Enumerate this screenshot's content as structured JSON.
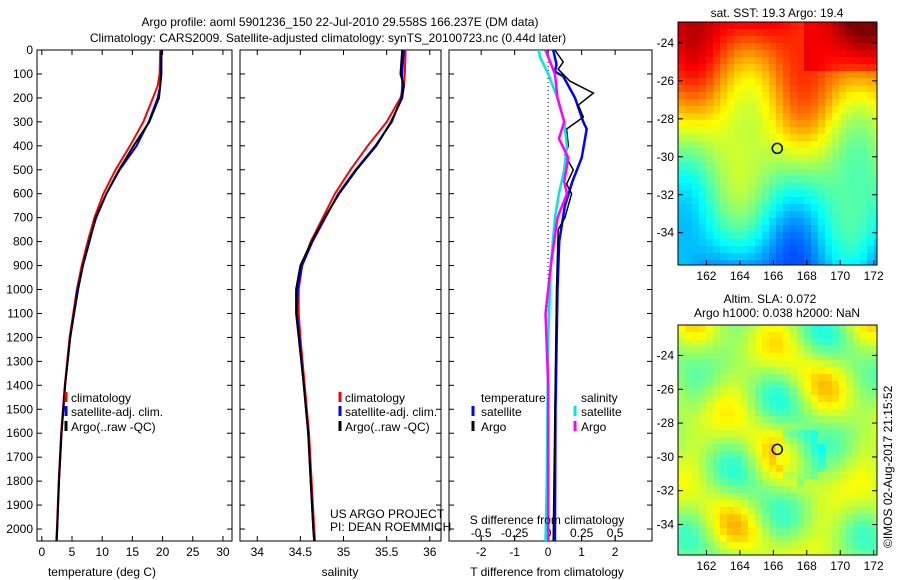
{
  "title_line1": "Argo profile: aoml 5901236_150 22-Jul-2010 29.558S 166.237E (DM data)",
  "title_line2": "Climatology: CARS2009. Satellite-adjusted climatology: synTS_20100723.nc (0.44d later)",
  "footer_credit": "©IMOS 02-Aug-2017 21:15:52",
  "project_line1": "US ARGO PROJECT",
  "project_line2": "PI: DEAN ROEMMICH",
  "colors": {
    "climatology": "#ff0000",
    "satellite": "#0000ff",
    "argo": "#000000",
    "sal_satellite": "#00e5e5",
    "sal_argo": "#ff00ff"
  },
  "chart_data": [
    {
      "type": "line",
      "name": "temperature-profile",
      "xlabel": "temperature (deg C)",
      "ylabel": "",
      "xlim": [
        -0.8,
        31.5
      ],
      "ylim": [
        2050,
        0
      ],
      "xticks": [
        0,
        5,
        10,
        15,
        20,
        25,
        30
      ],
      "yticks": [
        0,
        100,
        200,
        300,
        400,
        500,
        600,
        700,
        800,
        900,
        1000,
        1100,
        1200,
        1300,
        1400,
        1500,
        1600,
        1700,
        1800,
        1900,
        2000
      ],
      "legend": [
        "climatology",
        "satellite-adj. clim.",
        "Argo(..raw -QC)"
      ],
      "legend_placement": "lower-left",
      "depth": [
        0,
        100,
        150,
        200,
        300,
        400,
        500,
        600,
        700,
        800,
        900,
        1000,
        1200,
        1400,
        1600,
        1800,
        2000,
        2050
      ],
      "series": [
        {
          "name": "climatology",
          "color": "#ff0000",
          "values": [
            19.6,
            19.5,
            19.2,
            18.4,
            16.8,
            14.6,
            12.2,
            10.2,
            8.7,
            7.6,
            6.6,
            5.8,
            4.6,
            3.8,
            3.2,
            2.8,
            2.5,
            2.4
          ]
        },
        {
          "name": "satellite-adj. clim.",
          "color": "#0000ff",
          "values": [
            19.8,
            19.7,
            19.6,
            19.2,
            17.7,
            15.7,
            12.9,
            10.7,
            9.0,
            7.8,
            6.8,
            5.9,
            4.7,
            3.85,
            3.25,
            2.85,
            2.55,
            2.45
          ]
        },
        {
          "name": "Argo(..raw -QC)",
          "color": "#000000",
          "values": [
            19.8,
            19.8,
            19.6,
            19.4,
            17.8,
            15.2,
            12.8,
            10.7,
            8.9,
            7.9,
            6.8,
            6.0,
            4.7,
            3.85,
            3.25,
            2.85,
            2.55,
            2.45
          ]
        }
      ]
    },
    {
      "type": "line",
      "name": "salinity-profile",
      "xlabel": "salinity",
      "xlim": [
        33.8,
        36.13
      ],
      "ylim": [
        2050,
        0
      ],
      "xticks": [
        34,
        34.5,
        35,
        35.5,
        36
      ],
      "legend": [
        "climatology",
        "satellite-adj. clim.",
        "Argo(..raw -QC)"
      ],
      "legend_placement": "lower-right",
      "depth": [
        0,
        100,
        150,
        200,
        300,
        400,
        500,
        600,
        700,
        800,
        900,
        1000,
        1100,
        1200,
        1400,
        1600,
        1800,
        2000,
        2050
      ],
      "series": [
        {
          "name": "climatology",
          "color": "#ff0000",
          "values": [
            35.72,
            35.71,
            35.7,
            35.66,
            35.5,
            35.28,
            35.08,
            34.9,
            34.76,
            34.62,
            34.52,
            34.48,
            34.48,
            34.5,
            34.55,
            34.6,
            34.63,
            34.66,
            34.67
          ]
        },
        {
          "name": "satellite-adj. clim.",
          "color": "#0000ff",
          "values": [
            35.7,
            35.68,
            35.68,
            35.67,
            35.56,
            35.37,
            35.14,
            34.94,
            34.79,
            34.64,
            34.52,
            34.47,
            34.46,
            34.49,
            34.54,
            34.59,
            34.62,
            34.65,
            34.66
          ]
        },
        {
          "name": "Argo(..raw -QC)",
          "color": "#000000",
          "values": [
            35.68,
            35.66,
            35.7,
            35.68,
            35.55,
            35.38,
            35.15,
            34.95,
            34.78,
            34.63,
            34.5,
            34.45,
            34.45,
            34.48,
            34.54,
            34.59,
            34.62,
            34.65,
            34.66
          ]
        }
      ]
    },
    {
      "type": "line",
      "name": "difference-profile",
      "xlabel": "T difference from climatology",
      "x2label": "S difference from climatology",
      "xlim": [
        -2.96,
        3.1
      ],
      "ylim": [
        2050,
        0
      ],
      "xticks": [
        -2,
        -1,
        0,
        1,
        2
      ],
      "x2ticks": [
        -0.5,
        -0.25,
        0,
        0.25,
        0.5
      ],
      "legend_headers": [
        "temperature",
        "salinity"
      ],
      "legend": [
        "satellite",
        "Argo",
        "satellite",
        "Argo"
      ],
      "legend_placement": "lower-center",
      "series": [
        {
          "name": "T satellite",
          "axis": "T",
          "color": "#0000ff",
          "depth": [
            0,
            60,
            90,
            110,
            200,
            300,
            330,
            450,
            550,
            650,
            800,
            1000,
            1500,
            2050
          ],
          "values": [
            0.15,
            0.25,
            0.2,
            0.45,
            0.8,
            1.05,
            1.15,
            1.0,
            0.72,
            0.5,
            0.33,
            0.28,
            0.22,
            0.2
          ]
        },
        {
          "name": "T Argo",
          "axis": "T",
          "color": "#000000",
          "depth": [
            0,
            50,
            80,
            130,
            180,
            230,
            280,
            330,
            400,
            440,
            500,
            560,
            600,
            700,
            750,
            1000,
            1500,
            2050
          ],
          "values": [
            0.2,
            0.45,
            0.3,
            0.65,
            1.35,
            0.9,
            1.05,
            0.55,
            0.6,
            0.5,
            0.75,
            0.55,
            0.7,
            0.5,
            0.3,
            0.25,
            0.2,
            0.15
          ]
        },
        {
          "name": "S satellite",
          "axis": "S",
          "color": "#00e5e5",
          "depth": [
            0,
            30,
            100,
            200,
            300,
            400,
            500,
            600,
            700,
            900,
            1200,
            1800,
            2050
          ],
          "values": [
            -0.07,
            -0.06,
            0.0,
            0.07,
            0.12,
            0.14,
            0.12,
            0.08,
            0.05,
            0.02,
            0.0,
            -0.01,
            -0.02
          ]
        },
        {
          "name": "S Argo",
          "axis": "S",
          "color": "#ff00ff",
          "depth": [
            0,
            100,
            200,
            300,
            370,
            450,
            550,
            600,
            700,
            900,
            1100,
            1400,
            2050
          ],
          "values": [
            -0.02,
            0.05,
            0.07,
            0.12,
            0.08,
            0.15,
            0.12,
            0.14,
            0.07,
            0.02,
            -0.02,
            0.0,
            0.0
          ]
        }
      ]
    },
    {
      "type": "heatmap",
      "name": "sst-map",
      "title": "sat. SST: 19.3 Argo: 19.4",
      "xlim": [
        160.3,
        172.2
      ],
      "ylim": [
        -35.7,
        -22.9
      ],
      "xticks": [
        162,
        164,
        166,
        168,
        170,
        172
      ],
      "yticks": [
        -24,
        -26,
        -28,
        -30,
        -32,
        -34
      ],
      "marker": {
        "lon": 166.237,
        "lat": -29.558
      }
    },
    {
      "type": "heatmap",
      "name": "sla-map",
      "title_line1": "Altim. SLA: 0.072",
      "title_line2": "Argo h1000: 0.038 h2000: NaN",
      "xlim": [
        160.3,
        172.2
      ],
      "ylim": [
        -35.8,
        -22.2
      ],
      "xticks": [
        162,
        164,
        166,
        168,
        170,
        172
      ],
      "yticks": [
        -24,
        -26,
        -28,
        -30,
        -32,
        -34
      ],
      "marker": {
        "lon": 166.237,
        "lat": -29.558
      }
    }
  ]
}
